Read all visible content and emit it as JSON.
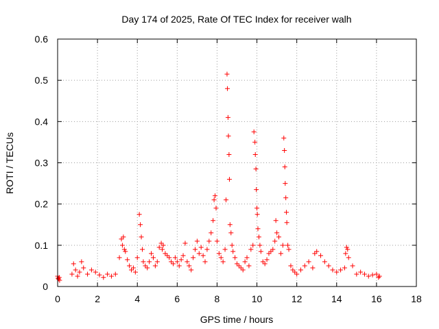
{
  "chart_data": {
    "type": "scatter",
    "title": "Day 174 of 2025, Rate Of TEC Index for receiver walh",
    "xlabel": "GPS time / hours",
    "ylabel": "ROTI / TECUs",
    "xlim": [
      0,
      18
    ],
    "ylim": [
      0,
      0.6
    ],
    "x_ticks": [
      0,
      2,
      4,
      6,
      8,
      10,
      12,
      14,
      16,
      18
    ],
    "x_tick_labels": [
      "0",
      "2",
      "4",
      "6",
      "8",
      "10",
      "12",
      "14",
      "16",
      "18"
    ],
    "y_ticks": [
      0,
      0.1,
      0.2,
      0.3,
      0.4,
      0.5,
      0.6
    ],
    "y_tick_labels": [
      "0",
      "0.1",
      "0.2",
      "0.3",
      "0.4",
      "0.5",
      "0.6"
    ],
    "grid": true,
    "marker": "+",
    "marker_color": "#ff0000",
    "series": [
      {
        "name": "ROTI",
        "x": [
          0.0,
          0.02,
          0.05,
          0.08,
          0.1,
          0.72,
          0.8,
          0.9,
          1.0,
          1.1,
          1.2,
          1.3,
          1.5,
          1.7,
          1.9,
          2.1,
          2.3,
          2.5,
          2.7,
          2.9,
          3.1,
          3.2,
          3.25,
          3.3,
          3.35,
          3.4,
          3.5,
          3.6,
          3.7,
          3.8,
          3.9,
          4.0,
          4.1,
          4.15,
          4.2,
          4.25,
          4.3,
          4.4,
          4.5,
          4.6,
          4.7,
          4.8,
          4.9,
          5.0,
          5.1,
          5.2,
          5.25,
          5.3,
          5.4,
          5.5,
          5.6,
          5.7,
          5.8,
          5.9,
          6.0,
          6.1,
          6.2,
          6.3,
          6.4,
          6.5,
          6.6,
          6.7,
          6.8,
          6.9,
          7.0,
          7.1,
          7.2,
          7.3,
          7.4,
          7.5,
          7.6,
          7.7,
          7.8,
          7.85,
          7.9,
          7.95,
          8.0,
          8.1,
          8.2,
          8.3,
          8.4,
          8.45,
          8.5,
          8.52,
          8.55,
          8.57,
          8.6,
          8.62,
          8.65,
          8.7,
          8.75,
          8.8,
          8.9,
          9.0,
          9.1,
          9.2,
          9.3,
          9.4,
          9.5,
          9.6,
          9.7,
          9.8,
          9.85,
          9.9,
          9.92,
          9.95,
          9.97,
          10.0,
          10.02,
          10.05,
          10.1,
          10.15,
          10.2,
          10.3,
          10.4,
          10.5,
          10.6,
          10.7,
          10.8,
          10.9,
          10.95,
          11.0,
          11.1,
          11.2,
          11.3,
          11.35,
          11.38,
          11.4,
          11.42,
          11.45,
          11.48,
          11.5,
          11.55,
          11.6,
          11.7,
          11.8,
          11.9,
          12.0,
          12.2,
          12.4,
          12.6,
          12.8,
          12.9,
          13.0,
          13.2,
          13.4,
          13.6,
          13.8,
          14.0,
          14.2,
          14.4,
          14.45,
          14.5,
          14.55,
          14.6,
          14.8,
          15.0,
          15.2,
          15.4,
          15.6,
          15.8,
          16.0,
          16.1,
          16.15
        ],
        "y": [
          0.025,
          0.02,
          0.018,
          0.022,
          0.015,
          0.03,
          0.055,
          0.04,
          0.025,
          0.035,
          0.06,
          0.045,
          0.03,
          0.04,
          0.035,
          0.028,
          0.022,
          0.03,
          0.025,
          0.03,
          0.07,
          0.115,
          0.1,
          0.12,
          0.09,
          0.085,
          0.065,
          0.05,
          0.04,
          0.045,
          0.035,
          0.07,
          0.175,
          0.15,
          0.12,
          0.09,
          0.06,
          0.05,
          0.045,
          0.06,
          0.08,
          0.07,
          0.05,
          0.06,
          0.095,
          0.105,
          0.09,
          0.1,
          0.08,
          0.075,
          0.07,
          0.06,
          0.055,
          0.07,
          0.06,
          0.05,
          0.065,
          0.075,
          0.105,
          0.06,
          0.05,
          0.04,
          0.07,
          0.09,
          0.11,
          0.08,
          0.095,
          0.075,
          0.06,
          0.09,
          0.11,
          0.13,
          0.16,
          0.21,
          0.22,
          0.19,
          0.11,
          0.08,
          0.07,
          0.06,
          0.09,
          0.21,
          0.515,
          0.48,
          0.41,
          0.365,
          0.32,
          0.26,
          0.15,
          0.13,
          0.1,
          0.085,
          0.07,
          0.055,
          0.05,
          0.045,
          0.04,
          0.06,
          0.07,
          0.05,
          0.09,
          0.1,
          0.375,
          0.35,
          0.32,
          0.285,
          0.235,
          0.19,
          0.175,
          0.14,
          0.12,
          0.1,
          0.085,
          0.06,
          0.055,
          0.065,
          0.08,
          0.085,
          0.09,
          0.11,
          0.16,
          0.13,
          0.12,
          0.08,
          0.1,
          0.36,
          0.33,
          0.29,
          0.25,
          0.215,
          0.18,
          0.155,
          0.1,
          0.09,
          0.05,
          0.04,
          0.035,
          0.03,
          0.04,
          0.05,
          0.06,
          0.045,
          0.08,
          0.085,
          0.075,
          0.06,
          0.05,
          0.04,
          0.035,
          0.04,
          0.045,
          0.08,
          0.095,
          0.09,
          0.07,
          0.05,
          0.03,
          0.035,
          0.03,
          0.025,
          0.028,
          0.03,
          0.022,
          0.025
        ]
      }
    ]
  }
}
